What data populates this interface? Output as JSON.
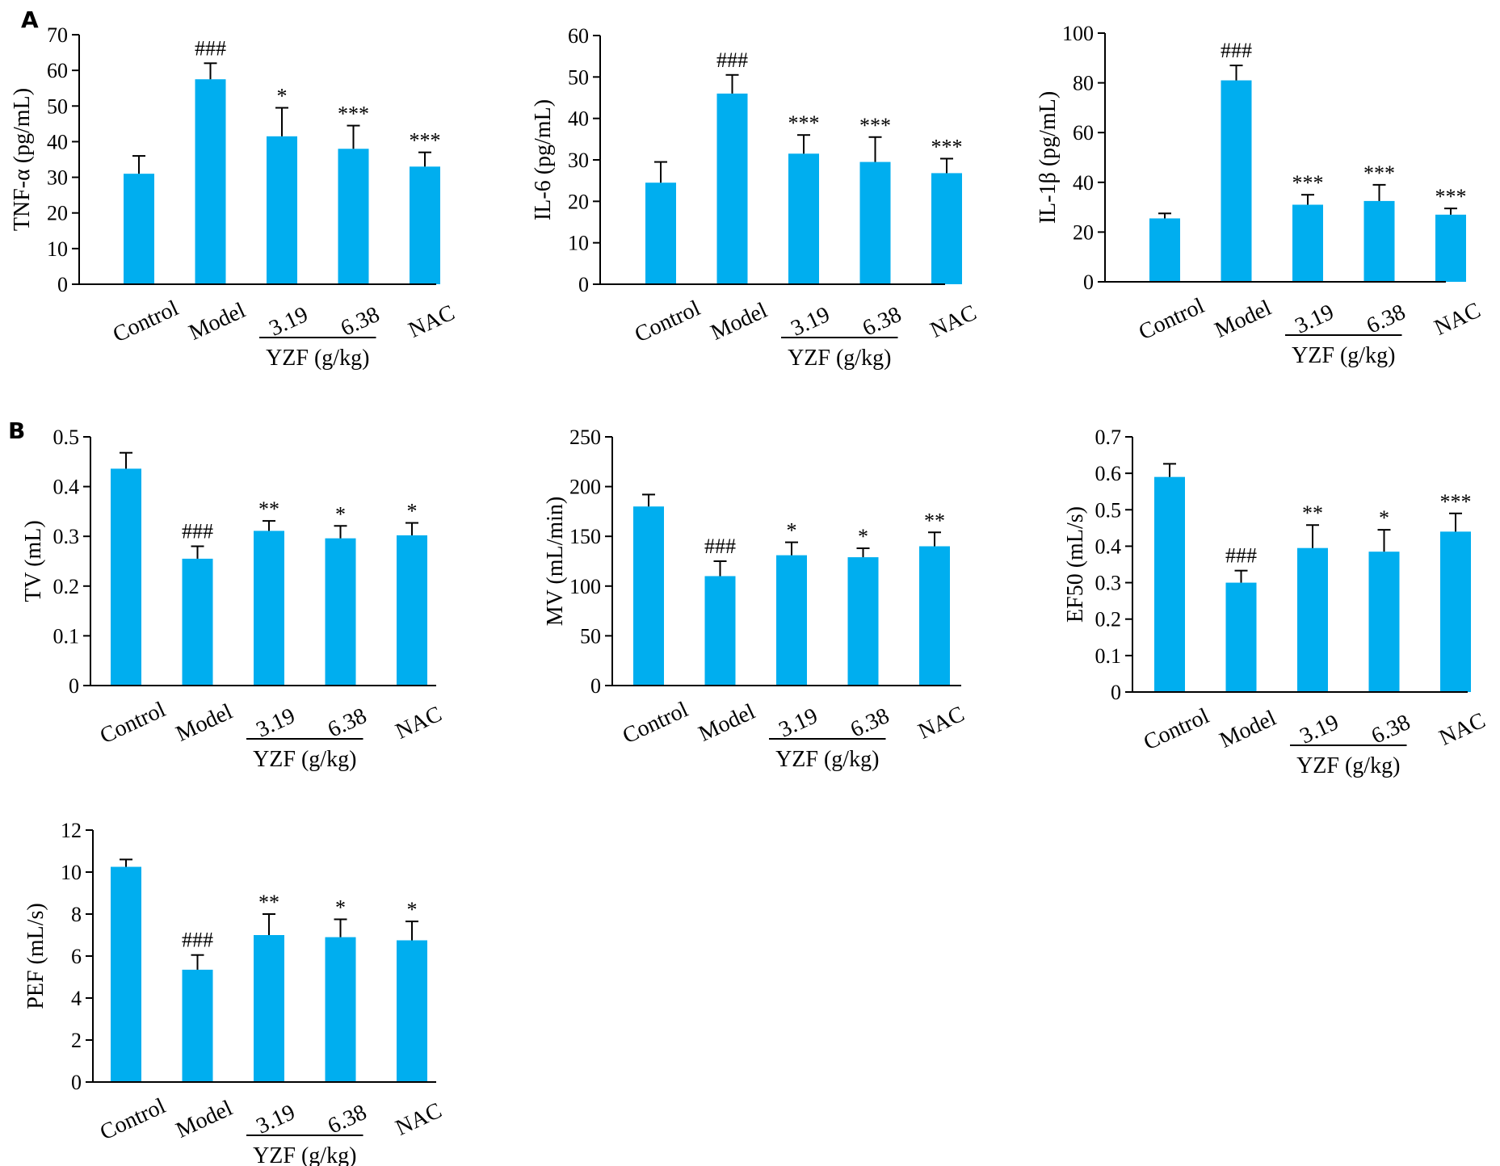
{
  "panel_labels": [
    "A",
    "B"
  ],
  "colors": {
    "bar": "#00aeef",
    "axis": "#000000"
  },
  "chart_data": [
    {
      "type": "bar",
      "panel": "A",
      "ylabel": "TNF-α (pg/mL)",
      "categories": [
        "Control",
        "Model",
        "3.19",
        "6.38",
        "NAC"
      ],
      "group_label": "YZF (g/kg)",
      "values": [
        31,
        57.5,
        41.5,
        38,
        33
      ],
      "errors": [
        5,
        4.5,
        8,
        6.5,
        4
      ],
      "significance": [
        "",
        "###",
        "*",
        "***",
        "***"
      ],
      "ylim": [
        0,
        70
      ],
      "yticks": [
        0,
        10,
        20,
        30,
        40,
        50,
        60,
        70
      ],
      "ytick_labels": [
        "0",
        "10",
        "20",
        "30",
        "40",
        "50",
        "60",
        "70"
      ]
    },
    {
      "type": "bar",
      "panel": "A",
      "ylabel": "IL-6 (pg/mL)",
      "categories": [
        "Control",
        "Model",
        "3.19",
        "6.38",
        "NAC"
      ],
      "group_label": "YZF (g/kg)",
      "values": [
        24.5,
        46,
        31.5,
        29.5,
        26.8
      ],
      "errors": [
        5,
        4.5,
        4.5,
        6,
        3.5
      ],
      "significance": [
        "",
        "###",
        "***",
        "***",
        "***"
      ],
      "ylim": [
        0,
        60
      ],
      "yticks": [
        0,
        10,
        20,
        30,
        40,
        50,
        60
      ],
      "ytick_labels": [
        "0",
        "10",
        "20",
        "30",
        "40",
        "50",
        "60"
      ]
    },
    {
      "type": "bar",
      "panel": "A",
      "ylabel": "IL-1β (pg/mL)",
      "categories": [
        "Control",
        "Model",
        "3.19",
        "6.38",
        "NAC"
      ],
      "group_label": "YZF (g/kg)",
      "values": [
        25.5,
        81,
        31,
        32.5,
        27
      ],
      "errors": [
        2,
        6,
        4,
        6.5,
        2.5
      ],
      "significance": [
        "",
        "###",
        "***",
        "***",
        "***"
      ],
      "ylim": [
        0,
        100
      ],
      "yticks": [
        0,
        20,
        40,
        60,
        80,
        100
      ],
      "ytick_labels": [
        "0",
        "20",
        "40",
        "60",
        "80",
        "100"
      ]
    },
    {
      "type": "bar",
      "panel": "B",
      "ylabel": "TV (mL)",
      "categories": [
        "Control",
        "Model",
        "3.19",
        "6.38",
        "NAC"
      ],
      "group_label": "YZF (g/kg)",
      "values": [
        0.436,
        0.255,
        0.311,
        0.296,
        0.302
      ],
      "errors": [
        0.032,
        0.025,
        0.02,
        0.025,
        0.025
      ],
      "significance": [
        "",
        "###",
        "**",
        "*",
        "*"
      ],
      "ylim": [
        0,
        0.5
      ],
      "yticks": [
        0,
        0.1,
        0.2,
        0.3,
        0.4,
        0.5
      ],
      "ytick_labels": [
        "0",
        "0.1",
        "0.2",
        "0.3",
        "0.4",
        "0.5"
      ]
    },
    {
      "type": "bar",
      "panel": "B",
      "ylabel": "MV (mL/min)",
      "categories": [
        "Control",
        "Model",
        "3.19",
        "6.38",
        "NAC"
      ],
      "group_label": "YZF (g/kg)",
      "values": [
        180,
        110,
        131,
        129,
        140
      ],
      "errors": [
        12,
        15,
        13,
        9,
        14
      ],
      "significance": [
        "",
        "###",
        "*",
        "*",
        "**"
      ],
      "ylim": [
        0,
        250
      ],
      "yticks": [
        0,
        50,
        100,
        150,
        200,
        250
      ],
      "ytick_labels": [
        "0",
        "50",
        "100",
        "150",
        "200",
        "250"
      ]
    },
    {
      "type": "bar",
      "panel": "B",
      "ylabel": "EF50 (mL/s)",
      "categories": [
        "Control",
        "Model",
        "3.19",
        "6.38",
        "NAC"
      ],
      "group_label": "YZF (g/kg)",
      "values": [
        0.59,
        0.3,
        0.395,
        0.385,
        0.44
      ],
      "errors": [
        0.036,
        0.033,
        0.063,
        0.06,
        0.05
      ],
      "significance": [
        "",
        "###",
        "**",
        "*",
        "***"
      ],
      "ylim": [
        0,
        0.7
      ],
      "yticks": [
        0,
        0.1,
        0.2,
        0.3,
        0.4,
        0.5,
        0.6,
        0.7
      ],
      "ytick_labels": [
        "0",
        "0.1",
        "0.2",
        "0.3",
        "0.4",
        "0.5",
        "0.6",
        "0.7"
      ]
    },
    {
      "type": "bar",
      "panel": "B",
      "ylabel": "PEF (mL/s)",
      "categories": [
        "Control",
        "Model",
        "3.19",
        "6.38",
        "NAC"
      ],
      "group_label": "YZF (g/kg)",
      "values": [
        10.25,
        5.35,
        7.0,
        6.9,
        6.75
      ],
      "errors": [
        0.35,
        0.7,
        1.0,
        0.85,
        0.9
      ],
      "significance": [
        "",
        "###",
        "**",
        "*",
        "*"
      ],
      "ylim": [
        0,
        12
      ],
      "yticks": [
        0,
        2,
        4,
        6,
        8,
        10,
        12
      ],
      "ytick_labels": [
        "0",
        "2",
        "4",
        "6",
        "8",
        "10",
        "12"
      ]
    }
  ]
}
